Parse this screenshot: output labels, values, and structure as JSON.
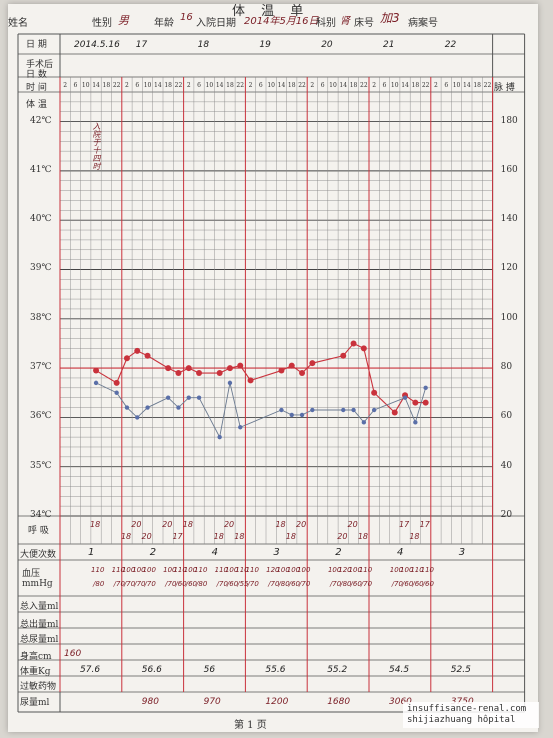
{
  "header": {
    "title": "体 温 单",
    "name_label": "姓名",
    "sex_label": "性别",
    "sex_value": "男",
    "age_label": "年龄",
    "age_value": "16",
    "admit_label": "入院日期",
    "admit_value": "2014年5月16日",
    "dept_label": "科别",
    "dept_value": "肾",
    "bed_label": "床号",
    "bed_value": "加3",
    "record_label": "病案号"
  },
  "rows": {
    "date": "日 期",
    "postop": "手术后\n日 数",
    "time": "时 间",
    "body": "体 温",
    "pulse": "脉 搏",
    "resp": "呼 吸",
    "stool": "大便次数",
    "bp": "血压\nmmHg",
    "intake": "总入量ml",
    "output": "总出量ml",
    "urine": "总尿量ml",
    "height": "身高cm",
    "weight": "体重Kg",
    "allergy": "过敏药物",
    "urine_vol": "尿量ml"
  },
  "dates": [
    "2014.5.16",
    "17",
    "18",
    "19",
    "20",
    "21",
    "22"
  ],
  "hours": [
    "2",
    "6",
    "10",
    "14",
    "18",
    "22"
  ],
  "temp_ticks": [
    "42℃",
    "41℃",
    "40℃",
    "39℃",
    "38℃",
    "37℃",
    "36℃",
    "35℃",
    "34℃"
  ],
  "pulse_ticks": [
    "180",
    "160",
    "140",
    "120",
    "100",
    "80",
    "60",
    "40",
    "20"
  ],
  "admit_note": "入院于十四时",
  "chart_data": {
    "type": "line",
    "temp_range": [
      34,
      42.6
    ],
    "pulse_range": [
      20,
      188
    ],
    "series": [
      {
        "values": [
          [
            3,
            36.95
          ],
          [
            5,
            36.7
          ],
          [
            6,
            37.2
          ],
          [
            7,
            37.35
          ],
          [
            8,
            37.25
          ],
          [
            10,
            37.0
          ],
          [
            11,
            36.9
          ],
          [
            12,
            37.0
          ],
          [
            13,
            36.9
          ],
          [
            15,
            36.9
          ],
          [
            16,
            37.0
          ],
          [
            17,
            37.05
          ],
          [
            18,
            36.75
          ],
          [
            21,
            36.95
          ],
          [
            22,
            37.05
          ],
          [
            23,
            36.9
          ],
          [
            24,
            37.1
          ],
          [
            27,
            37.25
          ],
          [
            28,
            37.5
          ],
          [
            29,
            37.4
          ],
          [
            30,
            36.5
          ],
          [
            32,
            36.1
          ],
          [
            33,
            36.45
          ],
          [
            34,
            36.3
          ],
          [
            35,
            36.3
          ]
        ]
      },
      {
        "values": [
          [
            3,
            74
          ],
          [
            5,
            70
          ],
          [
            6,
            64
          ],
          [
            7,
            60
          ],
          [
            8,
            64
          ],
          [
            10,
            68
          ],
          [
            11,
            64
          ],
          [
            12,
            68
          ],
          [
            13,
            68
          ],
          [
            15,
            52
          ],
          [
            16,
            74
          ],
          [
            17,
            56
          ],
          [
            21,
            63
          ],
          [
            22,
            61
          ],
          [
            23,
            61
          ],
          [
            24,
            63
          ],
          [
            27,
            63
          ],
          [
            28,
            63
          ],
          [
            29,
            58
          ],
          [
            30,
            63
          ],
          [
            33,
            68
          ],
          [
            34,
            58
          ],
          [
            35,
            72
          ]
        ]
      }
    ]
  },
  "resp_values": [
    {
      "col": 3,
      "v": "18"
    },
    {
      "col": 6,
      "v": "18"
    },
    {
      "col": 7,
      "v": "20"
    },
    {
      "col": 8,
      "v": "20"
    },
    {
      "col": 10,
      "v": "20"
    },
    {
      "col": 11,
      "v": "17"
    },
    {
      "col": 12,
      "v": "18"
    },
    {
      "col": 15,
      "v": "18"
    },
    {
      "col": 16,
      "v": "20"
    },
    {
      "col": 17,
      "v": "18"
    },
    {
      "col": 21,
      "v": "18"
    },
    {
      "col": 22,
      "v": "18"
    },
    {
      "col": 23,
      "v": "20"
    },
    {
      "col": 27,
      "v": "20"
    },
    {
      "col": 28,
      "v": "20"
    },
    {
      "col": 29,
      "v": "18"
    },
    {
      "col": 33,
      "v": "17"
    },
    {
      "col": 34,
      "v": "18"
    },
    {
      "col": 35,
      "v": "17"
    }
  ],
  "stool": [
    "1",
    "2",
    "4",
    "3",
    "2",
    "4",
    "3"
  ],
  "bp_values": [
    {
      "col": 3,
      "v": "110/80"
    },
    {
      "col": 5,
      "v": "110/70"
    },
    {
      "col": 6,
      "v": "100/70"
    },
    {
      "col": 7,
      "v": "100/70"
    },
    {
      "col": 8,
      "v": "100/70"
    },
    {
      "col": 10,
      "v": "100/70"
    },
    {
      "col": 11,
      "v": "110/60"
    },
    {
      "col": 12,
      "v": "100/60"
    },
    {
      "col": 13,
      "v": "110/80"
    },
    {
      "col": 15,
      "v": "110/70"
    },
    {
      "col": 16,
      "v": "100/60"
    },
    {
      "col": 17,
      "v": "110/55"
    },
    {
      "col": 18,
      "v": "110/70"
    },
    {
      "col": 20,
      "v": "120/70"
    },
    {
      "col": 21,
      "v": "100/80"
    },
    {
      "col": 22,
      "v": "100/60"
    },
    {
      "col": 23,
      "v": "100/70"
    },
    {
      "col": 26,
      "v": "100/70"
    },
    {
      "col": 27,
      "v": "120/80"
    },
    {
      "col": 28,
      "v": "100/60"
    },
    {
      "col": 29,
      "v": "110/70"
    },
    {
      "col": 32,
      "v": "100/70"
    },
    {
      "col": 33,
      "v": "100/60"
    },
    {
      "col": 34,
      "v": "110/60"
    },
    {
      "col": 35,
      "v": "110/60"
    }
  ],
  "height": "160",
  "weights": [
    "57.6",
    "56.6",
    "56",
    "55.6",
    "55.2",
    "54.5",
    "52.5"
  ],
  "urine_values": [
    "980",
    "970",
    "1200",
    "1680",
    "3060",
    "3750"
  ],
  "footer": "第 1 页",
  "watermark": [
    "insuffisance-renal.com",
    "shijiazhuang hôpital"
  ]
}
